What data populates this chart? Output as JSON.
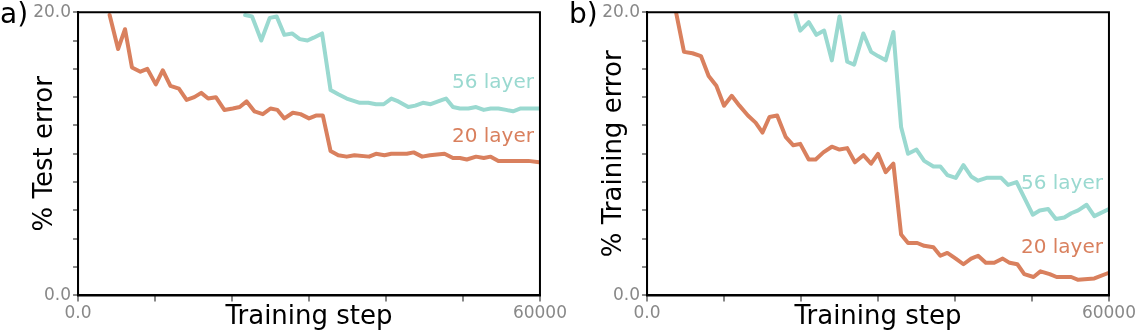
{
  "chart_data": [
    {
      "type": "line",
      "title": "a)",
      "xlabel": "Training step",
      "ylabel": "% Test error",
      "xlim": [
        0,
        60000
      ],
      "ylim": [
        0,
        20
      ],
      "xticks": [
        {
          "value": 0,
          "label": "0.0"
        },
        {
          "value": 10000,
          "label": null
        },
        {
          "value": 20000,
          "label": null
        },
        {
          "value": 30000,
          "label": null
        },
        {
          "value": 40000,
          "label": null
        },
        {
          "value": 50000,
          "label": null
        },
        {
          "value": 60000,
          "label": "60000"
        }
      ],
      "yticks": [
        {
          "value": 0,
          "label": "0.0"
        },
        {
          "value": 2,
          "label": null
        },
        {
          "value": 4,
          "label": null
        },
        {
          "value": 6,
          "label": null
        },
        {
          "value": 8,
          "label": null
        },
        {
          "value": 10,
          "label": null
        },
        {
          "value": 12,
          "label": null
        },
        {
          "value": 14,
          "label": null
        },
        {
          "value": 16,
          "label": null
        },
        {
          "value": 18,
          "label": null
        },
        {
          "value": 20,
          "label": "20.0"
        }
      ],
      "grid": false,
      "legend": false,
      "series": [
        {
          "name": "56 layer",
          "color": "#9ad9d0",
          "x": [
            21700,
            22600,
            23800,
            24900,
            25800,
            26800,
            27800,
            28800,
            29800,
            30600,
            31700,
            32800,
            33800,
            34900,
            36600,
            37700,
            38700,
            39700,
            40700,
            41600,
            42900,
            43800,
            44800,
            45800,
            47300,
            47800,
            48700,
            49600,
            50700,
            51700,
            52700,
            53600,
            54600,
            55600,
            56500,
            57500,
            60000
          ],
          "values": [
            19.8,
            19.7,
            18.0,
            19.6,
            19.7,
            18.4,
            18.5,
            18.1,
            18.0,
            18.2,
            18.5,
            14.5,
            14.2,
            13.9,
            13.6,
            13.6,
            13.5,
            13.5,
            13.9,
            13.7,
            13.3,
            13.4,
            13.6,
            13.5,
            13.8,
            13.9,
            13.3,
            13.2,
            13.2,
            13.3,
            13.1,
            13.2,
            13.2,
            13.1,
            13.0,
            13.2,
            13.2
          ]
        },
        {
          "name": "20 layer",
          "color": "#d9805e",
          "x": [
            4100,
            5200,
            6100,
            7000,
            8100,
            9000,
            10100,
            11000,
            12000,
            13100,
            14100,
            15100,
            16000,
            16900,
            17900,
            19000,
            20100,
            21000,
            21900,
            22900,
            24000,
            25000,
            25900,
            26800,
            27900,
            28900,
            30000,
            30900,
            31800,
            32800,
            33800,
            34900,
            35900,
            37800,
            38700,
            39800,
            40700,
            42700,
            43600,
            44700,
            45700,
            47600,
            48700,
            49600,
            50500,
            51700,
            52700,
            53600,
            54600,
            56700,
            58500,
            59900
          ],
          "values": [
            19.8,
            17.4,
            18.8,
            16.1,
            15.8,
            16.0,
            14.9,
            15.9,
            14.8,
            14.6,
            13.8,
            14.0,
            14.3,
            13.9,
            14.0,
            13.1,
            13.2,
            13.3,
            13.7,
            13.0,
            12.8,
            13.2,
            13.1,
            12.5,
            12.9,
            12.8,
            12.5,
            12.7,
            12.7,
            10.2,
            9.9,
            9.8,
            9.9,
            9.8,
            10.0,
            9.9,
            10.0,
            10.0,
            10.1,
            9.8,
            9.9,
            10.0,
            9.7,
            9.7,
            9.6,
            9.8,
            9.7,
            9.8,
            9.5,
            9.5,
            9.5,
            9.4
          ]
        }
      ]
    },
    {
      "type": "line",
      "title": "b)",
      "xlabel": "Training step",
      "ylabel": "% Training error",
      "xlim": [
        0,
        60000
      ],
      "ylim": [
        0,
        20
      ],
      "xticks": [
        {
          "value": 0,
          "label": "0.0"
        },
        {
          "value": 10000,
          "label": null
        },
        {
          "value": 20000,
          "label": null
        },
        {
          "value": 30000,
          "label": null
        },
        {
          "value": 40000,
          "label": null
        },
        {
          "value": 50000,
          "label": null
        },
        {
          "value": 60000,
          "label": "60000"
        }
      ],
      "yticks": [
        {
          "value": 0,
          "label": "0.0"
        },
        {
          "value": 2,
          "label": null
        },
        {
          "value": 4,
          "label": null
        },
        {
          "value": 6,
          "label": null
        },
        {
          "value": 8,
          "label": null
        },
        {
          "value": 10,
          "label": null
        },
        {
          "value": 12,
          "label": null
        },
        {
          "value": 14,
          "label": null
        },
        {
          "value": 16,
          "label": null
        },
        {
          "value": 18,
          "label": null
        },
        {
          "value": 20,
          "label": "20.0"
        }
      ],
      "grid": false,
      "legend": false,
      "series": [
        {
          "name": "56 layer",
          "color": "#9ad9d0",
          "x": [
            19300,
            19900,
            21000,
            22000,
            23000,
            24000,
            25000,
            26000,
            26900,
            28100,
            29100,
            30000,
            31000,
            32000,
            33000,
            33900,
            35000,
            36000,
            37200,
            38100,
            39000,
            40100,
            41100,
            42100,
            43000,
            44100,
            46000,
            46900,
            48000,
            49000,
            50100,
            51000,
            52100,
            53100,
            54200,
            55100,
            56000,
            57100,
            58100,
            60000
          ],
          "values": [
            19.8,
            18.7,
            19.3,
            18.4,
            18.7,
            16.6,
            19.7,
            16.5,
            16.3,
            18.5,
            17.2,
            16.9,
            16.6,
            18.6,
            11.9,
            10.0,
            10.3,
            9.5,
            9.1,
            9.1,
            8.5,
            8.3,
            9.2,
            8.4,
            8.1,
            8.3,
            8.3,
            7.8,
            8.0,
            6.9,
            5.7,
            6.0,
            6.1,
            5.4,
            5.5,
            5.8,
            6.0,
            6.4,
            5.6,
            6.1
          ]
        },
        {
          "name": "20 layer",
          "color": "#d9805e",
          "x": [
            3800,
            4800,
            5900,
            7000,
            8000,
            9000,
            10000,
            11000,
            12000,
            13100,
            14100,
            15000,
            15900,
            16900,
            18000,
            19000,
            19900,
            21000,
            21900,
            22900,
            24000,
            25000,
            26000,
            27000,
            28100,
            29100,
            30000,
            31000,
            32000,
            33000,
            33900,
            35100,
            36000,
            37200,
            38100,
            39000,
            40100,
            41100,
            42100,
            43000,
            44000,
            45100,
            46200,
            47100,
            48100,
            49000,
            50200,
            51100,
            52300,
            53200,
            55100,
            56000,
            58100,
            60000
          ],
          "values": [
            19.9,
            17.2,
            17.1,
            16.9,
            15.5,
            14.8,
            13.4,
            14.1,
            13.4,
            12.7,
            12.2,
            11.5,
            12.6,
            12.7,
            11.2,
            10.6,
            10.7,
            9.6,
            9.6,
            10.1,
            10.5,
            10.3,
            10.4,
            9.4,
            9.9,
            9.3,
            10.0,
            8.7,
            9.3,
            4.3,
            3.7,
            3.7,
            3.5,
            3.4,
            2.8,
            3.0,
            2.6,
            2.2,
            2.6,
            2.8,
            2.3,
            2.3,
            2.6,
            2.3,
            2.2,
            1.5,
            1.3,
            1.7,
            1.5,
            1.3,
            1.3,
            1.1,
            1.2,
            1.6
          ]
        }
      ]
    }
  ]
}
